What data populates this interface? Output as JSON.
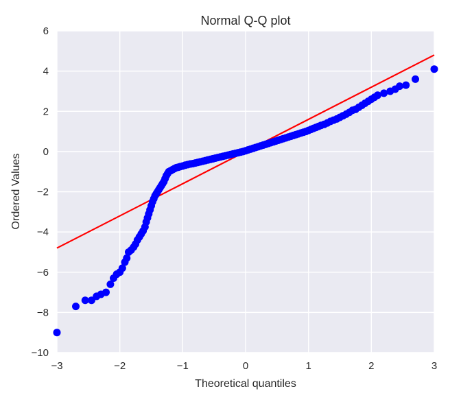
{
  "chart_data": {
    "type": "scatter",
    "title": "Normal Q-Q plot",
    "xlabel": "Theoretical quantiles",
    "ylabel": "Ordered Values",
    "xlim": [
      -3,
      3
    ],
    "ylim": [
      -10,
      6
    ],
    "xticks": [
      -3,
      -2,
      -1,
      0,
      1,
      2,
      3
    ],
    "yticks": [
      -10,
      -8,
      -6,
      -4,
      -2,
      0,
      2,
      4,
      6
    ],
    "xtick_labels": [
      "−3",
      "−2",
      "−1",
      "0",
      "1",
      "2",
      "3"
    ],
    "ytick_labels": [
      "−10",
      "−8",
      "−6",
      "−4",
      "−2",
      "0",
      "2",
      "4",
      "6"
    ],
    "grid": true,
    "legend": "none",
    "series": [
      {
        "kind": "points",
        "color": "#0000ff",
        "points": [
          [
            -3.0,
            -9.0
          ],
          [
            -2.7,
            -7.7
          ],
          [
            -2.55,
            -7.4
          ],
          [
            -2.45,
            -7.4
          ],
          [
            -2.37,
            -7.2
          ],
          [
            -2.3,
            -7.1
          ],
          [
            -2.22,
            -7.0
          ],
          [
            -2.15,
            -6.6
          ],
          [
            -2.1,
            -6.3
          ],
          [
            -2.05,
            -6.1
          ],
          [
            -2.0,
            -6.0
          ],
          [
            -1.96,
            -5.8
          ],
          [
            -1.92,
            -5.5
          ],
          [
            -1.89,
            -5.3
          ],
          [
            -1.86,
            -5.0
          ],
          [
            -1.82,
            -4.9
          ],
          [
            -1.78,
            -4.75
          ],
          [
            -1.75,
            -4.6
          ],
          [
            -1.72,
            -4.4
          ],
          [
            -1.69,
            -4.25
          ],
          [
            -1.66,
            -4.1
          ],
          [
            -1.63,
            -3.95
          ],
          [
            -1.6,
            -3.75
          ],
          [
            -1.58,
            -3.5
          ],
          [
            -1.56,
            -3.3
          ],
          [
            -1.54,
            -3.1
          ],
          [
            -1.52,
            -2.9
          ],
          [
            -1.5,
            -2.7
          ],
          [
            -1.48,
            -2.5
          ],
          [
            -1.46,
            -2.35
          ],
          [
            -1.44,
            -2.2
          ],
          [
            -1.42,
            -2.1
          ],
          [
            -1.4,
            -2.0
          ],
          [
            -1.38,
            -1.9
          ],
          [
            -1.36,
            -1.8
          ],
          [
            -1.34,
            -1.7
          ],
          [
            -1.32,
            -1.6
          ],
          [
            -1.3,
            -1.5
          ],
          [
            -1.28,
            -1.35
          ],
          [
            -1.26,
            -1.2
          ],
          [
            -1.24,
            -1.1
          ],
          [
            -1.22,
            -1.0
          ],
          [
            -1.19,
            -0.95
          ],
          [
            -1.16,
            -0.9
          ],
          [
            -1.13,
            -0.85
          ],
          [
            -1.1,
            -0.8
          ],
          [
            -1.07,
            -0.78
          ],
          [
            -1.04,
            -0.75
          ],
          [
            -1.0,
            -0.72
          ],
          [
            -0.96,
            -0.68
          ],
          [
            -0.92,
            -0.65
          ],
          [
            -0.88,
            -0.62
          ],
          [
            -0.84,
            -0.6
          ],
          [
            -0.8,
            -0.57
          ],
          [
            -0.76,
            -0.54
          ],
          [
            -0.72,
            -0.51
          ],
          [
            -0.68,
            -0.48
          ],
          [
            -0.64,
            -0.45
          ],
          [
            -0.6,
            -0.42
          ],
          [
            -0.56,
            -0.39
          ],
          [
            -0.52,
            -0.36
          ],
          [
            -0.48,
            -0.33
          ],
          [
            -0.44,
            -0.3
          ],
          [
            -0.4,
            -0.27
          ],
          [
            -0.36,
            -0.24
          ],
          [
            -0.32,
            -0.21
          ],
          [
            -0.28,
            -0.18
          ],
          [
            -0.24,
            -0.15
          ],
          [
            -0.2,
            -0.12
          ],
          [
            -0.16,
            -0.09
          ],
          [
            -0.12,
            -0.06
          ],
          [
            -0.08,
            -0.03
          ],
          [
            -0.04,
            0.0
          ],
          [
            0.0,
            0.04
          ],
          [
            0.04,
            0.08
          ],
          [
            0.08,
            0.12
          ],
          [
            0.12,
            0.16
          ],
          [
            0.16,
            0.2
          ],
          [
            0.2,
            0.24
          ],
          [
            0.24,
            0.28
          ],
          [
            0.28,
            0.32
          ],
          [
            0.32,
            0.36
          ],
          [
            0.36,
            0.4
          ],
          [
            0.4,
            0.44
          ],
          [
            0.44,
            0.48
          ],
          [
            0.48,
            0.52
          ],
          [
            0.52,
            0.56
          ],
          [
            0.56,
            0.6
          ],
          [
            0.6,
            0.64
          ],
          [
            0.64,
            0.68
          ],
          [
            0.68,
            0.72
          ],
          [
            0.72,
            0.76
          ],
          [
            0.76,
            0.8
          ],
          [
            0.8,
            0.84
          ],
          [
            0.84,
            0.88
          ],
          [
            0.88,
            0.92
          ],
          [
            0.92,
            0.96
          ],
          [
            0.96,
            1.0
          ],
          [
            1.0,
            1.05
          ],
          [
            1.04,
            1.1
          ],
          [
            1.08,
            1.15
          ],
          [
            1.12,
            1.2
          ],
          [
            1.16,
            1.25
          ],
          [
            1.2,
            1.3
          ],
          [
            1.25,
            1.35
          ],
          [
            1.3,
            1.42
          ],
          [
            1.35,
            1.5
          ],
          [
            1.4,
            1.56
          ],
          [
            1.45,
            1.62
          ],
          [
            1.5,
            1.7
          ],
          [
            1.55,
            1.78
          ],
          [
            1.6,
            1.86
          ],
          [
            1.65,
            1.95
          ],
          [
            1.7,
            2.05
          ],
          [
            1.75,
            2.1
          ],
          [
            1.8,
            2.2
          ],
          [
            1.85,
            2.3
          ],
          [
            1.9,
            2.4
          ],
          [
            1.95,
            2.5
          ],
          [
            2.0,
            2.6
          ],
          [
            2.05,
            2.7
          ],
          [
            2.1,
            2.8
          ],
          [
            2.2,
            2.9
          ],
          [
            2.3,
            3.0
          ],
          [
            2.38,
            3.1
          ],
          [
            2.45,
            3.25
          ],
          [
            2.55,
            3.3
          ],
          [
            2.7,
            3.6
          ],
          [
            3.0,
            4.1
          ]
        ]
      },
      {
        "kind": "fit-line",
        "color": "#ff0000",
        "points": [
          [
            -3,
            -4.8
          ],
          [
            3,
            4.8
          ]
        ]
      }
    ]
  }
}
